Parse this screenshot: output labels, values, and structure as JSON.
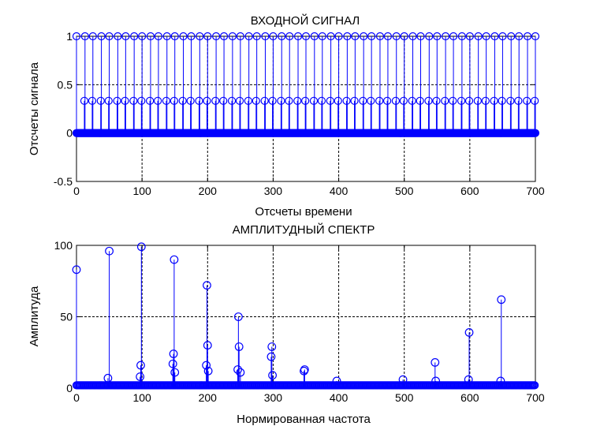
{
  "chart_data": [
    {
      "type": "stem",
      "title": "ВХОДНОЙ СИГНАЛ",
      "xlabel": "Отсчеты времени",
      "ylabel": "Отсчеты сигнала",
      "xlim": [
        0,
        700
      ],
      "ylim": [
        -0.5,
        1
      ],
      "xticks": [
        0,
        100,
        200,
        300,
        400,
        500,
        600,
        700
      ],
      "yticks": [
        -0.5,
        0,
        0.5,
        1
      ],
      "ytick_labels": [
        "-0.5",
        "0",
        "0.5",
        "1"
      ],
      "grid": true,
      "color": "#0000ff",
      "signal": {
        "period": 12.5,
        "peak_value": 1,
        "shoulder_value": 0.333,
        "baseline": 0
      },
      "samples_note": "periodic pulse train: value 1 every ~12.5 samples, ~0.33 one sample before, 0 elsewhere"
    },
    {
      "type": "stem",
      "title": "АМПЛИТУДНЫЙ СПЕКТР",
      "xlabel": "Нормированная частота",
      "ylabel": "Амплитуда",
      "xlim": [
        0,
        700
      ],
      "ylim": [
        0,
        100
      ],
      "xticks": [
        0,
        100,
        200,
        300,
        400,
        500,
        600,
        700
      ],
      "yticks": [
        0,
        50,
        100
      ],
      "grid": true,
      "color": "#0000ff",
      "peaks": [
        {
          "x": 0,
          "y": 83
        },
        {
          "x": 50,
          "y": 96
        },
        {
          "x": 48,
          "y": 7
        },
        {
          "x": 99,
          "y": 99
        },
        {
          "x": 98,
          "y": 16
        },
        {
          "x": 97,
          "y": 8
        },
        {
          "x": 149,
          "y": 90
        },
        {
          "x": 148,
          "y": 24
        },
        {
          "x": 147,
          "y": 17
        },
        {
          "x": 150,
          "y": 11
        },
        {
          "x": 199,
          "y": 72
        },
        {
          "x": 200,
          "y": 30
        },
        {
          "x": 198,
          "y": 16
        },
        {
          "x": 201,
          "y": 12
        },
        {
          "x": 247,
          "y": 50
        },
        {
          "x": 248,
          "y": 29
        },
        {
          "x": 246,
          "y": 13
        },
        {
          "x": 250,
          "y": 11
        },
        {
          "x": 298,
          "y": 29
        },
        {
          "x": 297,
          "y": 22
        },
        {
          "x": 299,
          "y": 9
        },
        {
          "x": 348,
          "y": 13
        },
        {
          "x": 347,
          "y": 12
        },
        {
          "x": 397,
          "y": 5
        },
        {
          "x": 498,
          "y": 6
        },
        {
          "x": 547,
          "y": 18
        },
        {
          "x": 548,
          "y": 5
        },
        {
          "x": 599,
          "y": 39
        },
        {
          "x": 598,
          "y": 6
        },
        {
          "x": 648,
          "y": 62
        },
        {
          "x": 647,
          "y": 5
        }
      ],
      "baseline_level": 2
    }
  ]
}
